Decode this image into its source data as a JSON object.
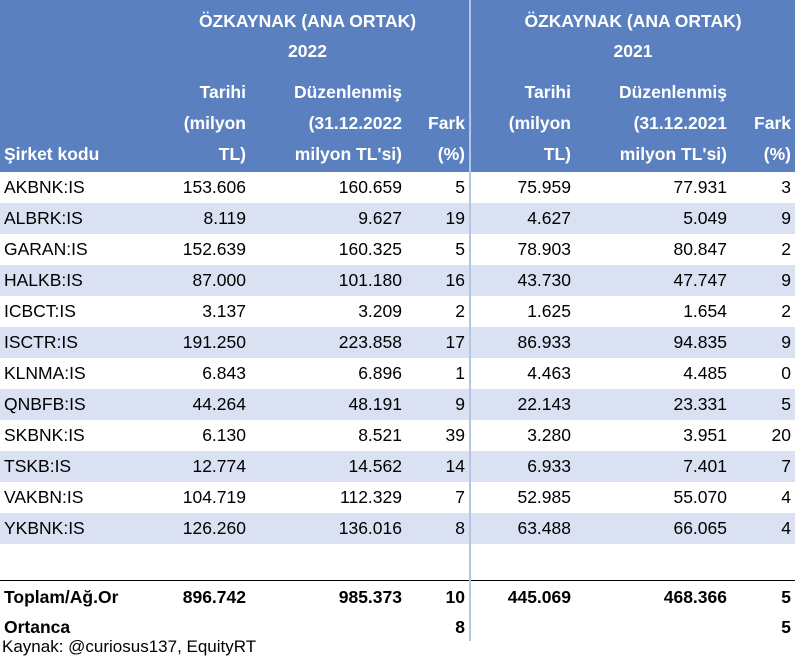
{
  "header": {
    "group_2022": "ÖZKAYNAK (ANA ORTAK)\n2022",
    "group_2022_line1": "ÖZKAYNAK (ANA ORTAK)",
    "group_2022_line2": "2022",
    "group_2021_line1": "ÖZKAYNAK (ANA ORTAK)",
    "group_2021_line2": "2021",
    "code_label": "Şirket kodu",
    "hist_2022": [
      "Tarihi",
      "(milyon",
      "TL)"
    ],
    "adj_2022": [
      "Düzenlenmiş",
      "(31.12.2022",
      "milyon TL'si)"
    ],
    "diff_2022": [
      "Fark",
      "(%)"
    ],
    "hist_2021": [
      "Tarihi",
      "(milyon",
      "TL)"
    ],
    "adj_2021": [
      "Düzenlenmiş",
      "(31.12.2021",
      "milyon TL'si)"
    ],
    "diff_2021": [
      "Fark",
      "(%)"
    ]
  },
  "rows": [
    {
      "code": "AKBNK:IS",
      "h22": "153.606",
      "a22": "160.659",
      "d22": "5",
      "h21": "75.959",
      "a21": "77.931",
      "d21": "3"
    },
    {
      "code": "ALBRK:IS",
      "h22": "8.119",
      "a22": "9.627",
      "d22": "19",
      "h21": "4.627",
      "a21": "5.049",
      "d21": "9"
    },
    {
      "code": "GARAN:IS",
      "h22": "152.639",
      "a22": "160.325",
      "d22": "5",
      "h21": "78.903",
      "a21": "80.847",
      "d21": "2"
    },
    {
      "code": "HALKB:IS",
      "h22": "87.000",
      "a22": "101.180",
      "d22": "16",
      "h21": "43.730",
      "a21": "47.747",
      "d21": "9"
    },
    {
      "code": "ICBCT:IS",
      "h22": "3.137",
      "a22": "3.209",
      "d22": "2",
      "h21": "1.625",
      "a21": "1.654",
      "d21": "2"
    },
    {
      "code": "ISCTR:IS",
      "h22": "191.250",
      "a22": "223.858",
      "d22": "17",
      "h21": "86.933",
      "a21": "94.835",
      "d21": "9"
    },
    {
      "code": "KLNMA:IS",
      "h22": "6.843",
      "a22": "6.896",
      "d22": "1",
      "h21": "4.463",
      "a21": "4.485",
      "d21": "0"
    },
    {
      "code": "QNBFB:IS",
      "h22": "44.264",
      "a22": "48.191",
      "d22": "9",
      "h21": "22.143",
      "a21": "23.331",
      "d21": "5"
    },
    {
      "code": "SKBNK:IS",
      "h22": "6.130",
      "a22": "8.521",
      "d22": "39",
      "h21": "3.280",
      "a21": "3.951",
      "d21": "20"
    },
    {
      "code": "TSKB:IS",
      "h22": "12.774",
      "a22": "14.562",
      "d22": "14",
      "h21": "6.933",
      "a21": "7.401",
      "d21": "7"
    },
    {
      "code": "VAKBN:IS",
      "h22": "104.719",
      "a22": "112.329",
      "d22": "7",
      "h21": "52.985",
      "a21": "55.070",
      "d21": "4"
    },
    {
      "code": "YKBNK:IS",
      "h22": "126.260",
      "a22": "136.016",
      "d22": "8",
      "h21": "63.488",
      "a21": "66.065",
      "d21": "4"
    }
  ],
  "total": {
    "label": "Toplam/Ağ.Or",
    "h22": "896.742",
    "a22": "985.373",
    "d22": "10",
    "h21": "445.069",
    "a21": "468.366",
    "d21": "5"
  },
  "median": {
    "label": "Ortanca",
    "d22": "8",
    "d21": "5"
  },
  "source": "Kaynak: @curiosus137, EquityRT",
  "colors": {
    "header_bg": "#5b80bf",
    "band_bg": "#d9e1f2"
  }
}
